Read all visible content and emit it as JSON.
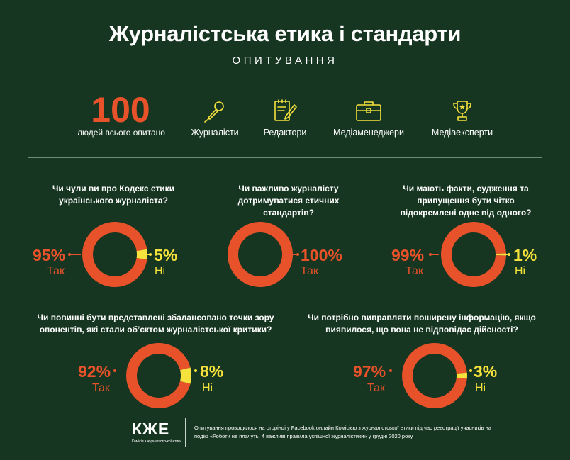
{
  "header": {
    "title": "Журналістська етика і стандарти",
    "subtitle": "ОПИТУВАННЯ"
  },
  "stats": {
    "total_value": "100",
    "total_caption": "людей всього опитано",
    "roles": [
      {
        "label": "Журналісти",
        "icon": "microphone-icon"
      },
      {
        "label": "Редактори",
        "icon": "notepad-pen-icon"
      },
      {
        "label": "Медіаменеджери",
        "icon": "briefcase-icon"
      },
      {
        "label": "Медіаексперти",
        "icon": "trophy-icon"
      }
    ]
  },
  "colors": {
    "background": "#163621",
    "yes": "#e8522a",
    "no": "#f6e23c"
  },
  "chart_data": [
    {
      "type": "pie",
      "question": "Чи чули ви про Кодекс етики українського журналіста?",
      "categories": [
        "Так",
        "Ні"
      ],
      "values": [
        95,
        5
      ],
      "labels": [
        "95%",
        "5%"
      ]
    },
    {
      "type": "pie",
      "question": "Чи важливо журналісту дотримуватися етичних стандартів?",
      "categories": [
        "Так"
      ],
      "values": [
        100
      ],
      "labels": [
        "100%"
      ]
    },
    {
      "type": "pie",
      "question": "Чи мають факти, судження та припущення бути чітко відокремлені одне від одного?",
      "categories": [
        "Так",
        "Ні"
      ],
      "values": [
        99,
        1
      ],
      "labels": [
        "99%",
        "1%"
      ]
    },
    {
      "type": "pie",
      "question": "Чи повинні бути представлені збалансовано точки зору опонентів, які стали об’єктом журналістської критики?",
      "categories": [
        "Так",
        "Ні"
      ],
      "values": [
        92,
        8
      ],
      "labels": [
        "92%",
        "8%"
      ]
    },
    {
      "type": "pie",
      "question": "Чи потрібно виправляти поширену інформацію, якщо виявилося, що вона не відповідає дійсності?",
      "categories": [
        "Так",
        "Ні"
      ],
      "values": [
        97,
        3
      ],
      "labels": [
        "97%",
        "3%"
      ]
    }
  ],
  "footer": {
    "logo": "КЖЕ",
    "logo_sub": "Комісія з журналістської етики",
    "note": "Опитування проводилося на сторінці у Facebook онлайн Комісією з журналістської етики під час реєстрації учасників на подію «Роботи не плачуть. 4 важливі правила успішної журналістики» у грудні 2020 року."
  }
}
